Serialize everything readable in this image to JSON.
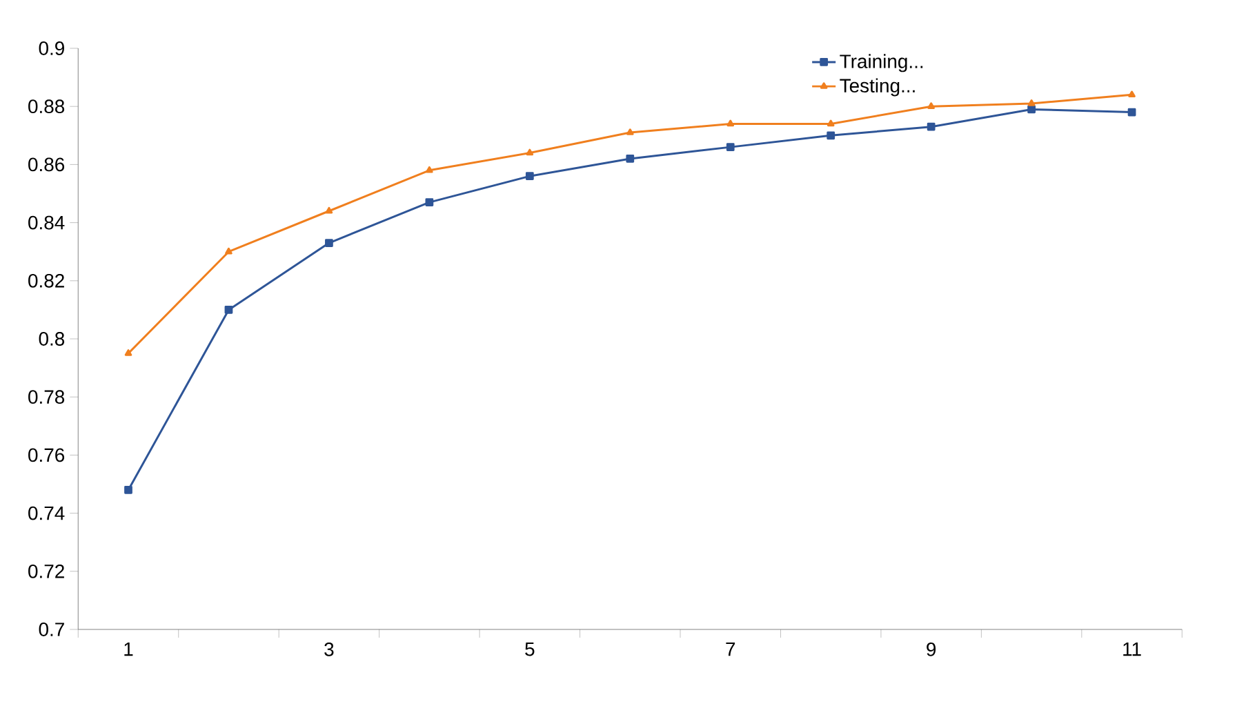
{
  "chart_data": {
    "type": "line",
    "categories": [
      "1",
      null,
      "3",
      null,
      "5",
      null,
      "7",
      null,
      "9",
      null,
      "11"
    ],
    "series": [
      {
        "name": "Training...",
        "color": "#2e5597",
        "marker": "square",
        "values": [
          0.748,
          0.81,
          0.833,
          0.847,
          0.856,
          0.862,
          0.866,
          0.87,
          0.873,
          0.879,
          0.878
        ]
      },
      {
        "name": "Testing...",
        "color": "#f07f1e",
        "marker": "triangle",
        "values": [
          0.795,
          0.83,
          0.844,
          0.858,
          0.864,
          0.871,
          0.874,
          0.874,
          0.88,
          0.881,
          0.884
        ]
      }
    ],
    "ylim": [
      0.7,
      0.9
    ],
    "yticks": [
      0.7,
      0.72,
      0.74,
      0.76,
      0.78,
      0.8,
      0.82,
      0.84,
      0.86,
      0.88,
      0.9
    ],
    "grid": false,
    "legend": "top right",
    "line_style": "solid"
  }
}
